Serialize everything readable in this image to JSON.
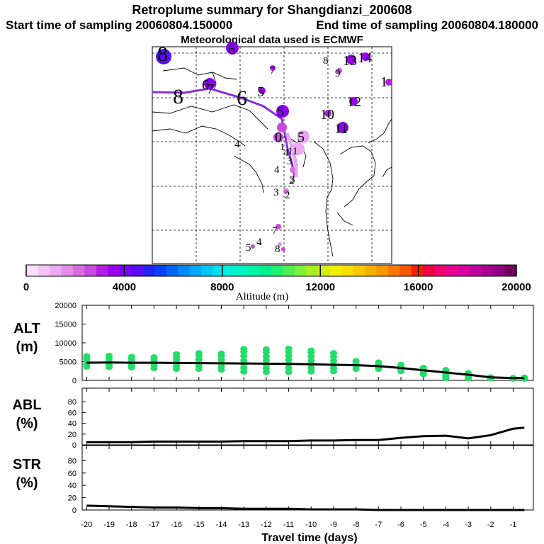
{
  "header": {
    "title": "Retroplume summary for Shangdianzi_200608",
    "start_label": "Start time of sampling 20060804.150000",
    "end_label": "End time of sampling 20060804.180000",
    "met_label": "Meteorological data used is ECMWF"
  },
  "colorbar": {
    "ticks": [
      "0",
      "4000",
      "8000",
      "12000",
      "16000",
      "20000"
    ],
    "label": "Altitude (m)",
    "colors": [
      "#fbe0fb",
      "#f4c4f4",
      "#eeaaf0",
      "#e58ee9",
      "#d96ee2",
      "#c84be0",
      "#b21ee6",
      "#9a00f0",
      "#7a00f8",
      "#5a0cf8",
      "#2424f0",
      "#0a40f8",
      "#0066f8",
      "#0088f8",
      "#00aaf8",
      "#00c6f8",
      "#00e0f0",
      "#00f0d8",
      "#00f4c0",
      "#00f4a8",
      "#00f090",
      "#20f070",
      "#50f050",
      "#80f038",
      "#a8f020",
      "#d0f010",
      "#f0f000",
      "#f8e000",
      "#f8c800",
      "#f8b000",
      "#f89800",
      "#f87800",
      "#f85800",
      "#f82000",
      "#f00040",
      "#f00070",
      "#e80090",
      "#d800a0",
      "#c000a0",
      "#a80090",
      "#900080",
      "#700060"
    ]
  },
  "map": {
    "trajectory_color": "#8a2be2",
    "labels": [
      {
        "t": "8",
        "s": "l"
      },
      {
        "t": "6",
        "s": "m"
      },
      {
        "t": "7",
        "s": "s"
      },
      {
        "t": "8",
        "s": "s"
      },
      {
        "t": "9",
        "s": "s"
      },
      {
        "t": "13",
        "s": "m"
      },
      {
        "t": "14",
        "s": "m"
      },
      {
        "t": "1",
        "s": "m"
      },
      {
        "t": "8",
        "s": "l"
      },
      {
        "t": "7",
        "s": "m"
      },
      {
        "t": "6",
        "s": "l"
      },
      {
        "t": "5",
        "s": "m"
      },
      {
        "t": "6",
        "s": "m"
      },
      {
        "t": "12",
        "s": "m"
      },
      {
        "t": "5",
        "s": "m"
      },
      {
        "t": "10",
        "s": "m"
      },
      {
        "t": "11",
        "s": "m"
      },
      {
        "t": "4",
        "s": "s"
      },
      {
        "t": "0",
        "s": "m"
      },
      {
        "t": "5",
        "s": "m"
      },
      {
        "t": "1",
        "s": "s"
      },
      {
        "t": "4",
        "s": "s"
      },
      {
        "t": "11",
        "s": "s"
      },
      {
        "t": "3",
        "s": "s"
      },
      {
        "t": "4",
        "s": "s"
      },
      {
        "t": "2",
        "s": "s"
      },
      {
        "t": "3",
        "s": "s"
      },
      {
        "t": "2",
        "s": "s"
      },
      {
        "t": "3",
        "s": "s"
      },
      {
        "t": "7",
        "s": "s"
      },
      {
        "t": "4",
        "s": "s"
      },
      {
        "t": "5",
        "s": "s"
      },
      {
        "t": "8",
        "s": "s"
      }
    ]
  },
  "chart_data": [
    {
      "type": "line+scatter",
      "name": "ALT",
      "ylabel": "ALT (m)",
      "ylim": [
        0,
        20000
      ],
      "yticks": [
        "0",
        "5000",
        "10000",
        "15000",
        "20000"
      ],
      "x": [
        -20,
        -19,
        -18,
        -17,
        -16,
        -15,
        -14,
        -13,
        -12,
        -11,
        -10,
        -9,
        -8,
        -7,
        -6,
        -5,
        -4,
        -3,
        -2,
        -1,
        -0.5
      ],
      "mean": [
        4700,
        4750,
        4700,
        4700,
        4650,
        4600,
        4550,
        4500,
        4450,
        4400,
        4300,
        4150,
        4050,
        3800,
        3300,
        2700,
        2100,
        1500,
        800,
        600,
        600
      ],
      "scatter_color": "#22dd66",
      "scatter": [
        {
          "x": -20,
          "ys": [
            3600,
            4300,
            5000,
            5800,
            6500
          ]
        },
        {
          "x": -19,
          "ys": [
            3500,
            4200,
            5000,
            5800,
            6600
          ]
        },
        {
          "x": -18,
          "ys": [
            3400,
            4100,
            4800,
            5600,
            6300
          ]
        },
        {
          "x": -17,
          "ys": [
            3200,
            4000,
            4800,
            5500,
            6200
          ]
        },
        {
          "x": -16,
          "ys": [
            3000,
            3800,
            4600,
            5400,
            6200,
            7000
          ]
        },
        {
          "x": -15,
          "ys": [
            3000,
            3800,
            4700,
            5600,
            6600,
            7300
          ]
        },
        {
          "x": -14,
          "ys": [
            2800,
            3700,
            4600,
            5500,
            6500,
            7200
          ]
        },
        {
          "x": -13,
          "ys": [
            2300,
            3300,
            4300,
            5300,
            6500,
            7600,
            8400
          ]
        },
        {
          "x": -12,
          "ys": [
            2200,
            3200,
            4200,
            5300,
            6400,
            7500,
            8300
          ]
        },
        {
          "x": -11,
          "ys": [
            2200,
            3300,
            4400,
            5500,
            6600,
            7600,
            8500
          ]
        },
        {
          "x": -10,
          "ys": [
            2300,
            3300,
            4300,
            5300,
            6400,
            7400,
            8000
          ]
        },
        {
          "x": -9,
          "ys": [
            2400,
            3300,
            4200,
            5200,
            6300,
            7300
          ]
        },
        {
          "x": -8,
          "ys": [
            3000,
            3800,
            4500,
            5200
          ]
        },
        {
          "x": -7,
          "ys": [
            3000,
            3600,
            4200,
            4800
          ]
        },
        {
          "x": -6,
          "ys": [
            2400,
            3000,
            3600,
            4200
          ]
        },
        {
          "x": -5,
          "ys": [
            1600,
            2200,
            2800,
            3400
          ]
        },
        {
          "x": -4,
          "ys": [
            600,
            1100,
            1600,
            2200,
            2800
          ]
        },
        {
          "x": -3,
          "ys": [
            500,
            900,
            1400,
            2000
          ]
        },
        {
          "x": -2,
          "ys": [
            500,
            900
          ]
        },
        {
          "x": -1,
          "ys": [
            400,
            700
          ]
        },
        {
          "x": -0.5,
          "ys": [
            400,
            800
          ]
        }
      ]
    },
    {
      "type": "line",
      "name": "ABL",
      "ylabel": "ABL (%)",
      "ylim": [
        0,
        100
      ],
      "yticks": [
        "0",
        "20",
        "40",
        "60",
        "80"
      ],
      "x": [
        -20,
        -19,
        -18,
        -17,
        -16,
        -15,
        -14,
        -13,
        -12,
        -11,
        -10,
        -9,
        -8,
        -7,
        -6,
        -5,
        -4,
        -3,
        -2,
        -1,
        -0.5
      ],
      "values": [
        5,
        5,
        5,
        6,
        6,
        6,
        6,
        7,
        7,
        7,
        8,
        8,
        9,
        9,
        13,
        16,
        17,
        12,
        18,
        30,
        32
      ]
    },
    {
      "type": "line",
      "name": "STR",
      "ylabel": "STR (%)",
      "ylim": [
        0,
        100
      ],
      "yticks": [
        "0",
        "20",
        "40",
        "60",
        "80"
      ],
      "x": [
        -20,
        -19,
        -18,
        -17,
        -16,
        -15,
        -14,
        -13,
        -12,
        -11,
        -10,
        -9,
        -8,
        -7,
        -6,
        -5,
        -4,
        -3,
        -2,
        -1,
        -0.5
      ],
      "values": [
        7,
        6,
        5,
        4,
        4,
        3,
        3,
        2,
        2,
        2,
        1,
        1,
        1,
        0,
        0,
        0,
        0,
        0,
        0,
        0,
        0
      ]
    }
  ],
  "xaxis": {
    "label": "Travel time (days)",
    "ticks": [
      "-20",
      "-19",
      "-18",
      "-17",
      "-16",
      "-15",
      "-14",
      "-13",
      "-12",
      "-11",
      "-10",
      "-9",
      "-8",
      "-7",
      "-6",
      "-5",
      "-4",
      "-3",
      "-2",
      "-1"
    ]
  }
}
